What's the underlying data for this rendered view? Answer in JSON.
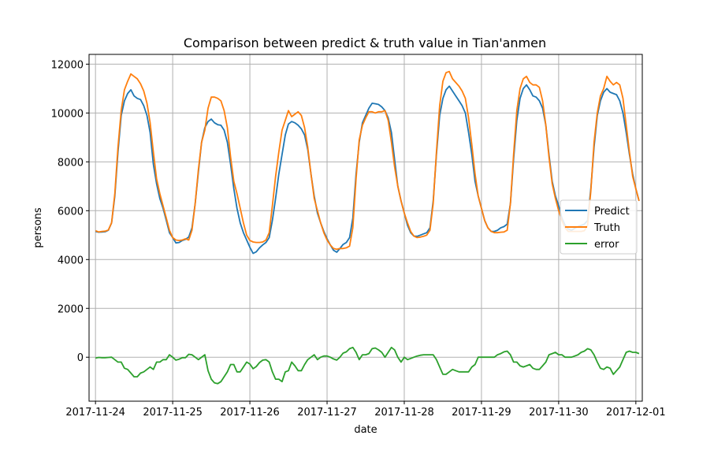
{
  "chart_data": {
    "type": "line",
    "title": "Comparison between predict & truth value in Tian'anmen",
    "xlabel": "date",
    "ylabel": "persons",
    "xlim": [
      "2017-11-23T22:00",
      "2017-12-01T02:00"
    ],
    "ylim": [
      -1800,
      12400
    ],
    "grid": true,
    "legend_position": "center-right",
    "x_ticks": [
      "2017-11-24",
      "2017-11-25",
      "2017-11-26",
      "2017-11-27",
      "2017-11-28",
      "2017-11-29",
      "2017-11-30",
      "2017-12-01"
    ],
    "y_ticks": [
      0,
      2000,
      4000,
      6000,
      8000,
      10000,
      12000
    ],
    "x_start": "2017-11-24T00:00",
    "x_step_hours": 1,
    "series": [
      {
        "name": "Predict",
        "color": "#1f77b4",
        "values": [
          5150,
          5120,
          5130,
          5140,
          5200,
          5500,
          6600,
          8400,
          9900,
          10500,
          10800,
          10950,
          10700,
          10600,
          10550,
          10300,
          9900,
          9200,
          7900,
          7100,
          6500,
          6100,
          5600,
          5100,
          4900,
          4680,
          4700,
          4780,
          4830,
          4920,
          5300,
          6300,
          7600,
          8800,
          9400,
          9650,
          9750,
          9600,
          9520,
          9500,
          9300,
          8800,
          7900,
          6900,
          6100,
          5500,
          5100,
          4800,
          4500,
          4250,
          4320,
          4480,
          4600,
          4700,
          4900,
          5600,
          6500,
          7500,
          8300,
          9100,
          9550,
          9650,
          9600,
          9500,
          9350,
          9100,
          8500,
          7500,
          6600,
          5900,
          5500,
          5150,
          4850,
          4600,
          4380,
          4300,
          4450,
          4620,
          4700,
          4900,
          5700,
          7500,
          8800,
          9600,
          9900,
          10200,
          10400,
          10380,
          10350,
          10250,
          10100,
          9800,
          9200,
          8100,
          7000,
          6400,
          5900,
          5400,
          5100,
          4960,
          4950,
          5000,
          5050,
          5100,
          5300,
          6400,
          8300,
          9900,
          10600,
          10950,
          11100,
          10900,
          10700,
          10500,
          10300,
          10000,
          9200,
          8300,
          7200,
          6600,
          6100,
          5600,
          5300,
          5150,
          5150,
          5200,
          5300,
          5350,
          5450,
          6300,
          8100,
          9700,
          10600,
          11000,
          11150,
          10950,
          10700,
          10650,
          10500,
          10200,
          9500,
          8300,
          7200,
          6600,
          6200,
          5700,
          5400,
          5250,
          5200,
          5280,
          5350,
          5400,
          5450,
          5600,
          6900,
          8600,
          9900,
          10500,
          10850,
          11000,
          10850,
          10800,
          10750,
          10500,
          10000,
          9200,
          8300,
          7500,
          6900,
          6400
        ]
      },
      {
        "name": "Truth",
        "color": "#ff7f0e",
        "values": [
          5180,
          5130,
          5150,
          5160,
          5210,
          5500,
          6700,
          8600,
          10100,
          10950,
          11300,
          11600,
          11500,
          11400,
          11200,
          10900,
          10400,
          9600,
          8400,
          7300,
          6700,
          6200,
          5700,
          5200,
          4900,
          4800,
          4780,
          4800,
          4850,
          4800,
          5200,
          6300,
          7700,
          8800,
          9300,
          10200,
          10650,
          10650,
          10600,
          10500,
          10100,
          9400,
          8200,
          7200,
          6700,
          6100,
          5500,
          5000,
          4780,
          4720,
          4700,
          4700,
          4720,
          4800,
          5100,
          6200,
          7400,
          8400,
          9300,
          9700,
          10100,
          9850,
          9950,
          10050,
          9900,
          9400,
          8600,
          7500,
          6500,
          6000,
          5500,
          5100,
          4800,
          4600,
          4450,
          4420,
          4450,
          4450,
          4480,
          4550,
          5300,
          7300,
          8900,
          9500,
          9800,
          10050,
          10050,
          10000,
          10050,
          10050,
          10100,
          9700,
          8800,
          7800,
          7000,
          6400,
          5900,
          5500,
          5150,
          4960,
          4900,
          4920,
          4950,
          5000,
          5200,
          6300,
          8400,
          10300,
          11300,
          11650,
          11700,
          11400,
          11250,
          11100,
          10900,
          10600,
          9800,
          8700,
          7500,
          6600,
          6100,
          5600,
          5300,
          5150,
          5100,
          5100,
          5120,
          5130,
          5200,
          6300,
          8300,
          10100,
          11000,
          11400,
          11500,
          11250,
          11150,
          11150,
          11050,
          10500,
          9500,
          8200,
          7100,
          6500,
          6000,
          5600,
          5300,
          5150,
          5150,
          5150,
          5150,
          5150,
          5180,
          5400,
          6800,
          8800,
          10000,
          10700,
          11000,
          11500,
          11300,
          11150,
          11250,
          11150,
          10600,
          9500,
          8400,
          7400,
          6900,
          6400
        ]
      },
      {
        "name": "error",
        "color": "#2ca02c",
        "values": [
          -30,
          -10,
          -20,
          -20,
          -10,
          0,
          -100,
          -200,
          -200,
          -450,
          -500,
          -650,
          -800,
          -800,
          -650,
          -600,
          -500,
          -400,
          -500,
          -200,
          -200,
          -100,
          -100,
          100,
          0,
          -120,
          -80,
          -20,
          -20,
          120,
          100,
          0,
          -100,
          0,
          100,
          -550,
          -900,
          -1050,
          -1080,
          -1000,
          -800,
          -600,
          -300,
          -300,
          -600,
          -600,
          -400,
          -200,
          -280,
          -470,
          -380,
          -220,
          -120,
          -100,
          -200,
          -600,
          -900,
          -900,
          -1000,
          -600,
          -550,
          -200,
          -350,
          -550,
          -550,
          -300,
          -100,
          0,
          100,
          -100,
          0,
          50,
          50,
          0,
          -70,
          -120,
          0,
          170,
          220,
          350,
          400,
          200,
          -100,
          100,
          100,
          150,
          350,
          380,
          300,
          200,
          0,
          200,
          400,
          300,
          0,
          -200,
          0,
          -100,
          -50,
          0,
          50,
          80,
          100,
          100,
          100,
          100,
          -100,
          -400,
          -700,
          -700,
          -600,
          -500,
          -550,
          -600,
          -600,
          -600,
          -600,
          -400,
          -300,
          0,
          0,
          0,
          0,
          0,
          0,
          100,
          150,
          220,
          250,
          100,
          -200,
          -200,
          -350,
          -400,
          -350,
          -300,
          -450,
          -500,
          -500,
          -350,
          -200,
          100,
          150,
          200,
          100,
          100,
          0,
          0,
          0,
          50,
          100,
          200,
          250,
          350,
          300,
          100,
          -200,
          -450,
          -500,
          -400,
          -450,
          -700,
          -550,
          -400,
          -100,
          200,
          250,
          200,
          200,
          150
        ]
      }
    ]
  }
}
